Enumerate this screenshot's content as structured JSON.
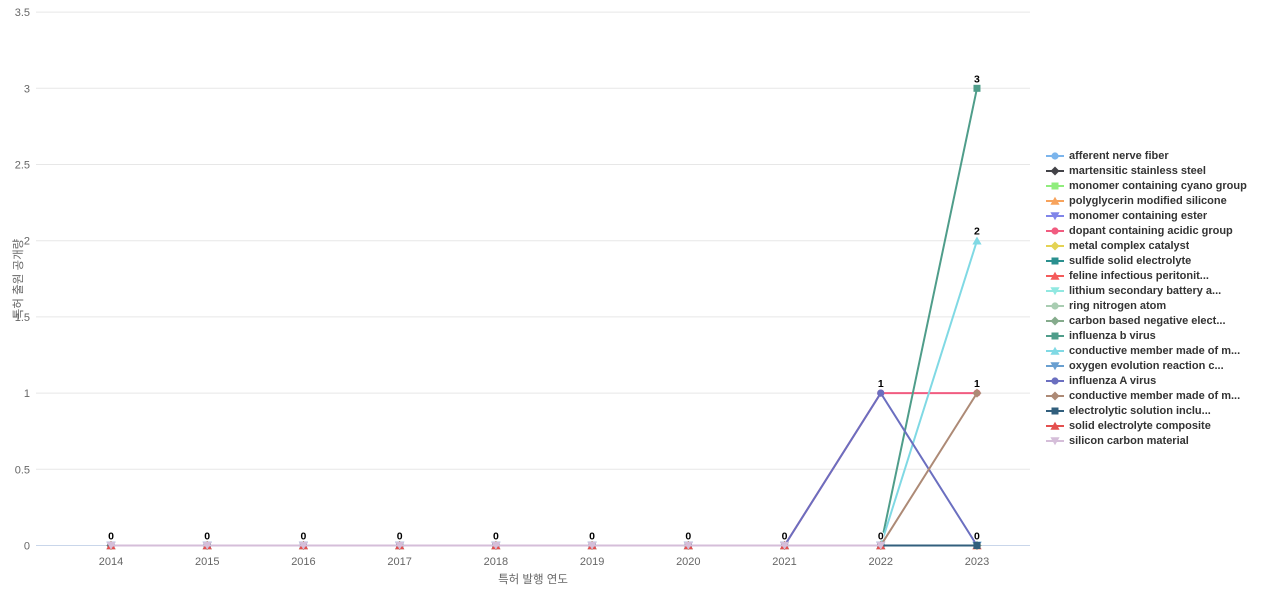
{
  "chart_data": {
    "type": "line",
    "title": "",
    "xlabel": "특허 발행 연도",
    "ylabel": "특허 출원 공개량",
    "x": [
      2014,
      2015,
      2016,
      2017,
      2018,
      2019,
      2020,
      2021,
      2022,
      2023
    ],
    "ylim": [
      0,
      3.5
    ],
    "yticks": [
      0,
      0.5,
      1,
      1.5,
      2,
      2.5,
      3,
      3.5
    ],
    "grid": "horizontal",
    "legend_position": "right",
    "point_labels_shown": [
      "0 at each year 2014-2021",
      "1 and 0 at 2022",
      "3, 2, 1 and 0 at 2023"
    ],
    "series": [
      {
        "name": "afferent nerve fiber",
        "color": "#7cb5ec",
        "marker": "circle",
        "values": [
          0,
          0,
          0,
          0,
          0,
          0,
          0,
          0,
          0,
          0
        ]
      },
      {
        "name": "martensitic stainless steel",
        "color": "#434348",
        "marker": "diamond",
        "values": [
          0,
          0,
          0,
          0,
          0,
          0,
          0,
          0,
          0,
          0
        ]
      },
      {
        "name": "monomer containing cyano group",
        "color": "#90ed7d",
        "marker": "square",
        "values": [
          0,
          0,
          0,
          0,
          0,
          0,
          0,
          0,
          0,
          0
        ]
      },
      {
        "name": "polyglycerin modified silicone",
        "color": "#f7a35c",
        "marker": "triangle",
        "values": [
          0,
          0,
          0,
          0,
          0,
          0,
          0,
          0,
          0,
          0
        ]
      },
      {
        "name": "monomer containing ester",
        "color": "#8085e9",
        "marker": "triangle-down",
        "values": [
          0,
          0,
          0,
          0,
          0,
          0,
          0,
          0,
          0,
          0
        ]
      },
      {
        "name": "dopant containing acidic group",
        "color": "#f15c80",
        "marker": "circle",
        "values": [
          0,
          0,
          0,
          0,
          0,
          0,
          0,
          0,
          1,
          1
        ]
      },
      {
        "name": "metal complex catalyst",
        "color": "#e4d354",
        "marker": "diamond",
        "values": [
          0,
          0,
          0,
          0,
          0,
          0,
          0,
          0,
          0,
          0
        ]
      },
      {
        "name": "sulfide solid electrolyte",
        "color": "#2b908f",
        "marker": "square",
        "values": [
          0,
          0,
          0,
          0,
          0,
          0,
          0,
          0,
          0,
          0
        ]
      },
      {
        "name": "feline infectious peritonit...",
        "color": "#f45b5b",
        "marker": "triangle",
        "values": [
          0,
          0,
          0,
          0,
          0,
          0,
          0,
          0,
          0,
          0
        ]
      },
      {
        "name": "lithium secondary battery a...",
        "color": "#91e8e1",
        "marker": "triangle-down",
        "values": [
          0,
          0,
          0,
          0,
          0,
          0,
          0,
          0,
          0,
          0
        ]
      },
      {
        "name": "ring nitrogen atom",
        "color": "#a9cdb2",
        "marker": "circle",
        "values": [
          0,
          0,
          0,
          0,
          0,
          0,
          0,
          0,
          0,
          0
        ]
      },
      {
        "name": "carbon based negative elect...",
        "color": "#85ab8c",
        "marker": "diamond",
        "values": [
          0,
          0,
          0,
          0,
          0,
          0,
          0,
          0,
          0,
          0
        ]
      },
      {
        "name": "influenza b virus",
        "color": "#4f9d8a",
        "marker": "square",
        "values": [
          0,
          0,
          0,
          0,
          0,
          0,
          0,
          0,
          0,
          3
        ]
      },
      {
        "name": "conductive member made of m...",
        "color": "#80d9e4",
        "marker": "triangle",
        "values": [
          0,
          0,
          0,
          0,
          0,
          0,
          0,
          0,
          0,
          2
        ]
      },
      {
        "name": "oxygen evolution reaction c...",
        "color": "#699fd0",
        "marker": "triangle-down",
        "values": [
          0,
          0,
          0,
          0,
          0,
          0,
          0,
          0,
          0,
          0
        ]
      },
      {
        "name": "influenza A virus",
        "color": "#6b6fc0",
        "marker": "circle",
        "values": [
          0,
          0,
          0,
          0,
          0,
          0,
          0,
          0,
          1,
          0
        ]
      },
      {
        "name": "conductive member made of m...",
        "color": "#ad8a76",
        "marker": "diamond",
        "values": [
          0,
          0,
          0,
          0,
          0,
          0,
          0,
          0,
          0,
          1
        ]
      },
      {
        "name": "electrolytic solution inclu...",
        "color": "#325f7d",
        "marker": "square",
        "values": [
          0,
          0,
          0,
          0,
          0,
          0,
          0,
          0,
          0,
          0
        ]
      },
      {
        "name": "solid electrolyte composite",
        "color": "#e4504f",
        "marker": "triangle",
        "values": [
          0,
          0,
          0,
          0,
          0,
          0,
          0,
          0,
          0,
          null
        ]
      },
      {
        "name": "silicon carbon material",
        "color": "#d5bed9",
        "marker": "triangle-down",
        "values": [
          0,
          0,
          0,
          0,
          0,
          0,
          0,
          0,
          0,
          null
        ]
      }
    ],
    "colors": {
      "gridline": "#e7e7e7",
      "zero_axis_line": "#c9d6ea",
      "tick_label": "#666666",
      "legend_text": "#333333",
      "data_label": "#000000"
    }
  }
}
